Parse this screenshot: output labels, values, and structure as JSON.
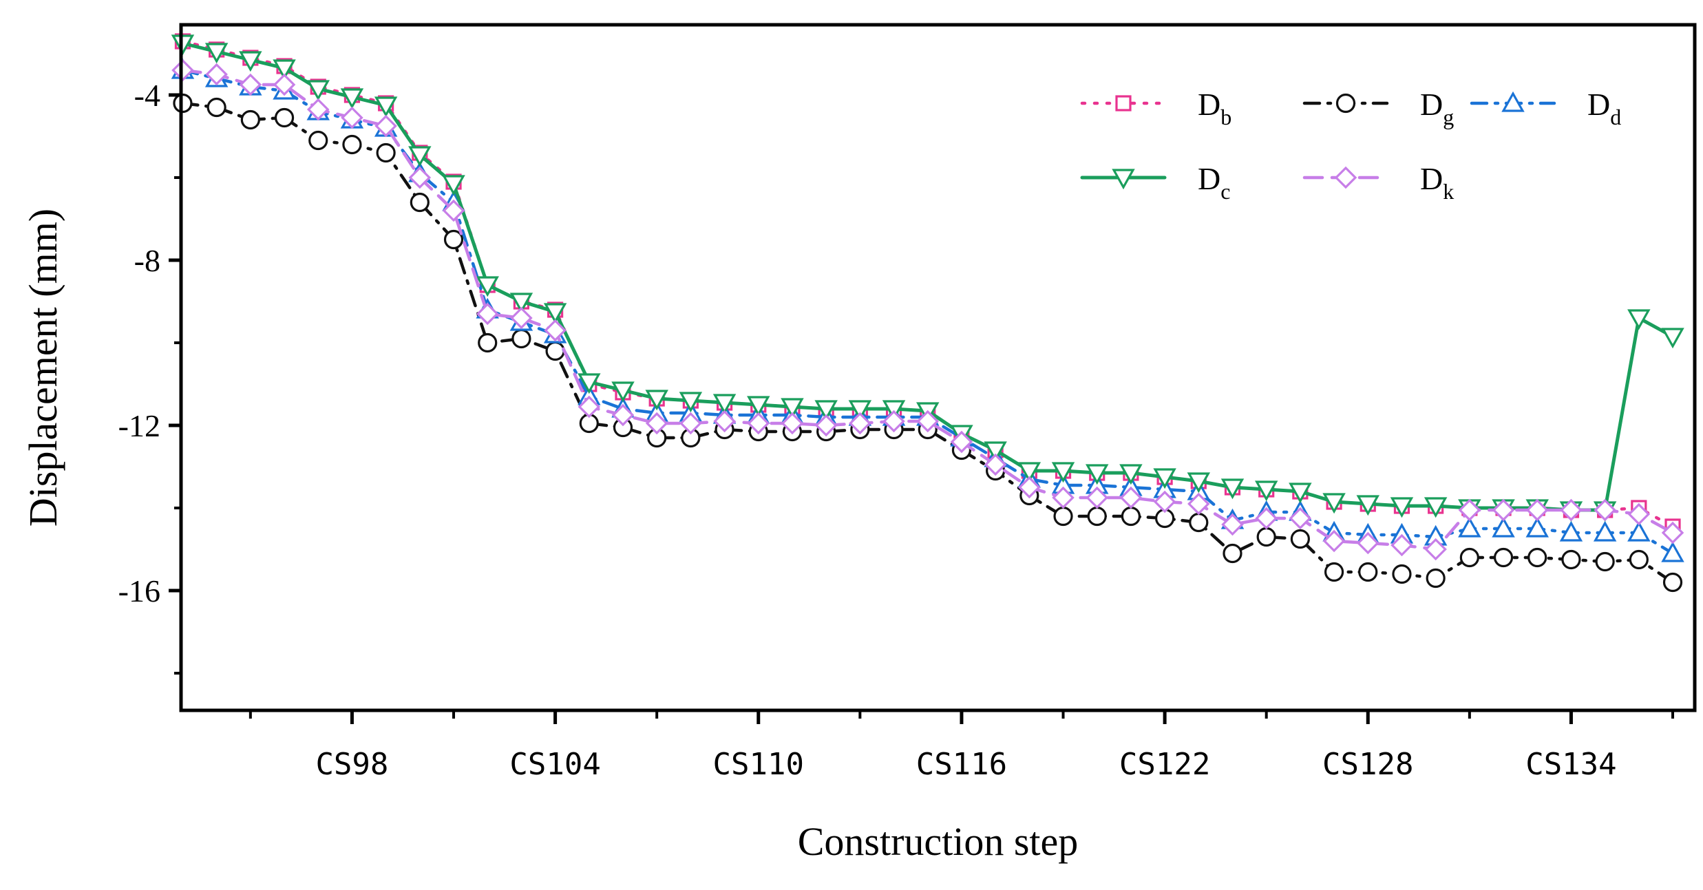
{
  "chart_data": {
    "type": "line",
    "title": "",
    "xlabel": "Construction step",
    "ylabel": "Displacement (mm)",
    "ylim": [
      -18.9,
      -2.3
    ],
    "yticks": [
      -4,
      -8,
      -12,
      -16
    ],
    "x": [
      93,
      94,
      95,
      96,
      97,
      98,
      99,
      100,
      101,
      102,
      103,
      104,
      105,
      106,
      107,
      108,
      109,
      110,
      111,
      112,
      113,
      114,
      115,
      116,
      117,
      118,
      119,
      120,
      121,
      122,
      123,
      124,
      125,
      126,
      127,
      128,
      129,
      130,
      131,
      132,
      133,
      134,
      135,
      136,
      137
    ],
    "xlim": [
      92.95,
      137.65
    ],
    "xtick_labels": [
      {
        "x": 98,
        "label": "CS98"
      },
      {
        "x": 104,
        "label": "CS104"
      },
      {
        "x": 110,
        "label": "CS110"
      },
      {
        "x": 116,
        "label": "CS116"
      },
      {
        "x": 122,
        "label": "CS122"
      },
      {
        "x": 128,
        "label": "CS128"
      },
      {
        "x": 134,
        "label": "CS134"
      }
    ],
    "series": [
      {
        "name": "D_b",
        "base": "D",
        "sub": "b",
        "color": "#e8338f",
        "marker": "square",
        "dash": "dot",
        "values": [
          -2.7,
          -2.9,
          -3.1,
          -3.3,
          -3.8,
          -4.0,
          -4.2,
          -5.4,
          -6.1,
          -8.6,
          -9.0,
          -9.2,
          -11.0,
          -11.2,
          -11.35,
          -11.4,
          -11.45,
          -11.5,
          -11.55,
          -11.6,
          -11.6,
          -11.6,
          -11.65,
          -12.2,
          -12.6,
          -13.1,
          -13.1,
          -13.15,
          -13.15,
          -13.25,
          -13.35,
          -13.5,
          -13.55,
          -13.6,
          -13.85,
          -13.9,
          -13.95,
          -13.95,
          -14.0,
          -14.0,
          -14.0,
          -14.05,
          -14.05,
          -14.0,
          -14.45
        ]
      },
      {
        "name": "D_g",
        "base": "D",
        "sub": "g",
        "color": "#111111",
        "marker": "circle",
        "dash": "dashdot",
        "values": [
          -4.2,
          -4.3,
          -4.6,
          -4.55,
          -5.1,
          -5.2,
          -5.4,
          -6.6,
          -7.5,
          -10.0,
          -9.9,
          -10.2,
          -11.95,
          -12.05,
          -12.3,
          -12.3,
          -12.1,
          -12.15,
          -12.15,
          -12.15,
          -12.1,
          -12.1,
          -12.1,
          -12.6,
          -13.1,
          -13.7,
          -14.2,
          -14.2,
          -14.2,
          -14.25,
          -14.35,
          -15.1,
          -14.7,
          -14.75,
          -15.55,
          -15.55,
          -15.6,
          -15.7,
          -15.2,
          -15.2,
          -15.2,
          -15.25,
          -15.3,
          -15.25,
          -15.8
        ]
      },
      {
        "name": "D_d",
        "base": "D",
        "sub": "d",
        "color": "#1a73d6",
        "marker": "triangle-up",
        "dash": "dashdot",
        "values": [
          -3.4,
          -3.6,
          -3.8,
          -3.9,
          -4.4,
          -4.6,
          -4.8,
          -5.9,
          -6.6,
          -9.2,
          -9.5,
          -9.8,
          -11.3,
          -11.6,
          -11.7,
          -11.7,
          -11.75,
          -11.75,
          -11.75,
          -11.8,
          -11.8,
          -11.8,
          -11.8,
          -12.3,
          -12.8,
          -13.3,
          -13.45,
          -13.45,
          -13.5,
          -13.55,
          -13.6,
          -14.3,
          -14.1,
          -14.1,
          -14.6,
          -14.65,
          -14.65,
          -14.7,
          -14.5,
          -14.5,
          -14.5,
          -14.6,
          -14.6,
          -14.6,
          -15.1
        ]
      },
      {
        "name": "D_c",
        "base": "D",
        "sub": "c",
        "color": "#1a9e5c",
        "marker": "triangle-down",
        "dash": "solid",
        "values": [
          -2.75,
          -2.95,
          -3.15,
          -3.35,
          -3.85,
          -4.05,
          -4.25,
          -5.45,
          -6.15,
          -8.6,
          -9.0,
          -9.25,
          -10.95,
          -11.15,
          -11.35,
          -11.4,
          -11.45,
          -11.5,
          -11.55,
          -11.6,
          -11.6,
          -11.6,
          -11.65,
          -12.2,
          -12.6,
          -13.1,
          -13.1,
          -13.15,
          -13.15,
          -13.25,
          -13.35,
          -13.5,
          -13.55,
          -13.6,
          -13.85,
          -13.9,
          -13.95,
          -13.95,
          -14.0,
          -14.0,
          -14.0,
          -14.05,
          -14.05,
          -9.4,
          -9.85
        ]
      },
      {
        "name": "D_k",
        "base": "D",
        "sub": "k",
        "color": "#c77ee8",
        "marker": "diamond",
        "dash": "dash",
        "values": [
          -3.4,
          -3.5,
          -3.75,
          -3.75,
          -4.35,
          -4.55,
          -4.75,
          -6.0,
          -6.8,
          -9.3,
          -9.4,
          -9.7,
          -11.55,
          -11.75,
          -11.95,
          -11.95,
          -11.9,
          -11.95,
          -11.95,
          -12.0,
          -11.95,
          -11.9,
          -11.9,
          -12.4,
          -12.95,
          -13.5,
          -13.75,
          -13.75,
          -13.75,
          -13.85,
          -13.9,
          -14.4,
          -14.25,
          -14.25,
          -14.8,
          -14.85,
          -14.9,
          -15.0,
          -14.05,
          -14.05,
          -14.05,
          -14.05,
          -14.05,
          -14.15,
          -14.6
        ]
      }
    ],
    "legend": {
      "placement": "top-right",
      "order": [
        "D_b",
        "D_g",
        "D_d",
        "D_c",
        "D_k"
      ]
    }
  }
}
